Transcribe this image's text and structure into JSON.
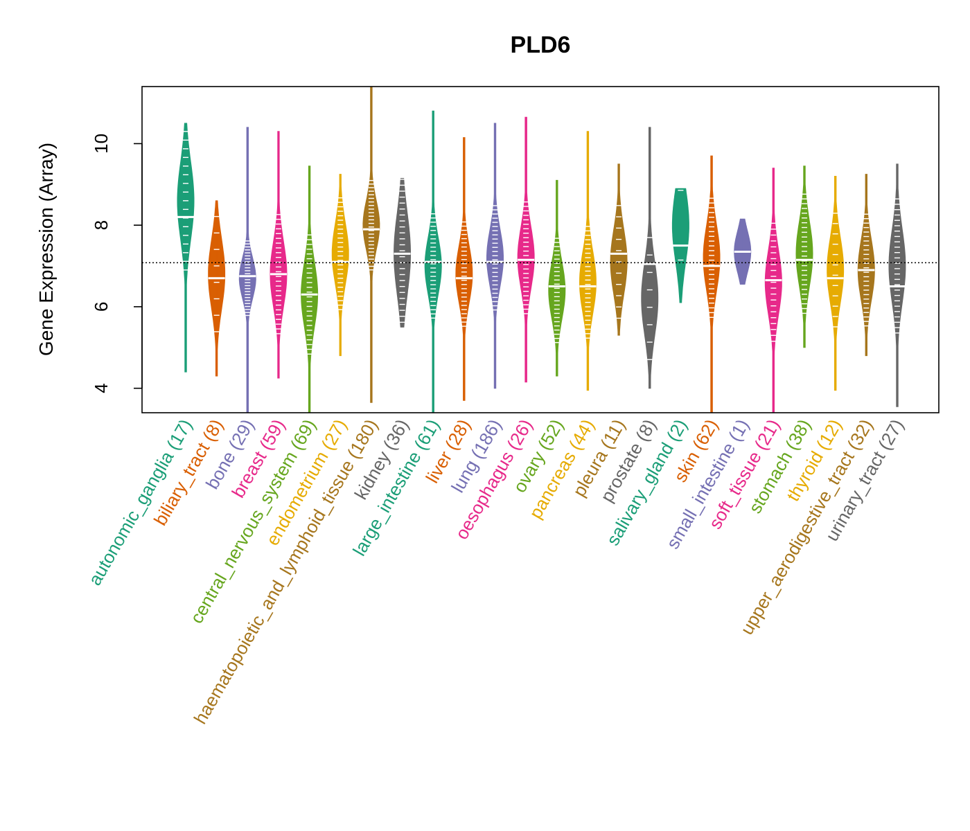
{
  "chart_data": {
    "type": "violin",
    "title": "PLD6",
    "ylabel": "Gene Expression (Array)",
    "xlabel": "",
    "ylim": [
      3.4,
      11.4
    ],
    "yticks": [
      4,
      6,
      8,
      10
    ],
    "reference_line": 7.08,
    "categories": [
      {
        "name": "autonomic_ganglia",
        "count": "(17)",
        "color": "#1B9E77",
        "min": 4.4,
        "max": 10.5,
        "median": 8.2,
        "mode": 8.6,
        "spread": 0.95
      },
      {
        "name": "biliary_tract",
        "count": "(8)",
        "color": "#D95F02",
        "min": 4.3,
        "max": 8.6,
        "median": 6.7,
        "mode": 6.8,
        "spread": 0.85
      },
      {
        "name": "bone",
        "count": "(29)",
        "color": "#7570B3",
        "min": 3.4,
        "max": 10.4,
        "median": 6.75,
        "mode": 6.7,
        "spread": 0.5
      },
      {
        "name": "breast",
        "count": "(59)",
        "color": "#E7298A",
        "min": 4.25,
        "max": 10.3,
        "median": 6.8,
        "mode": 6.8,
        "spread": 0.8
      },
      {
        "name": "central_nervous_system",
        "count": "(69)",
        "color": "#66A61E",
        "min": 3.4,
        "max": 9.45,
        "median": 6.3,
        "mode": 6.3,
        "spread": 0.8
      },
      {
        "name": "endometrium",
        "count": "(27)",
        "color": "#E6AB02",
        "min": 4.8,
        "max": 9.25,
        "median": 7.1,
        "mode": 7.3,
        "spread": 0.75
      },
      {
        "name": "haematopoietic_and_lymphoid_tissue",
        "count": "(180)",
        "color": "#A6761D",
        "min": 3.65,
        "max": 11.4,
        "median": 7.9,
        "mode": 8.0,
        "spread": 0.6
      },
      {
        "name": "kidney",
        "count": "(36)",
        "color": "#666666",
        "min": 5.5,
        "max": 9.15,
        "median": 7.3,
        "mode": 7.3,
        "spread": 1.0
      },
      {
        "name": "large_intestine",
        "count": "(61)",
        "color": "#1B9E77",
        "min": 3.4,
        "max": 10.8,
        "median": 7.1,
        "mode": 7.0,
        "spread": 0.7
      },
      {
        "name": "liver",
        "count": "(28)",
        "color": "#D95F02",
        "min": 3.7,
        "max": 10.15,
        "median": 6.7,
        "mode": 6.8,
        "spread": 0.7
      },
      {
        "name": "lung",
        "count": "(186)",
        "color": "#7570B3",
        "min": 4.0,
        "max": 10.5,
        "median": 7.1,
        "mode": 7.2,
        "spread": 0.7
      },
      {
        "name": "oesophagus",
        "count": "(26)",
        "color": "#E7298A",
        "min": 4.15,
        "max": 10.65,
        "median": 7.15,
        "mode": 7.2,
        "spread": 0.75
      },
      {
        "name": "ovary",
        "count": "(52)",
        "color": "#66A61E",
        "min": 4.3,
        "max": 9.1,
        "median": 6.5,
        "mode": 6.4,
        "spread": 0.7
      },
      {
        "name": "pancreas",
        "count": "(44)",
        "color": "#E6AB02",
        "min": 3.95,
        "max": 10.3,
        "median": 6.5,
        "mode": 6.6,
        "spread": 0.75
      },
      {
        "name": "pleura",
        "count": "(11)",
        "color": "#A6761D",
        "min": 5.3,
        "max": 9.5,
        "median": 7.3,
        "mode": 7.1,
        "spread": 0.8
      },
      {
        "name": "prostate",
        "count": "(8)",
        "color": "#666666",
        "min": 4.0,
        "max": 10.4,
        "median": 7.05,
        "mode": 6.2,
        "spread": 0.9
      },
      {
        "name": "salivary_gland",
        "count": "(2)",
        "color": "#1B9E77",
        "min": 6.1,
        "max": 8.9,
        "median": 7.5,
        "mode": 8.0,
        "spread": 0.9
      },
      {
        "name": "skin",
        "count": "(62)",
        "color": "#D95F02",
        "min": 3.4,
        "max": 9.7,
        "median": 7.0,
        "mode": 7.2,
        "spread": 0.8
      },
      {
        "name": "small_intestine",
        "count": "(1)",
        "color": "#7570B3",
        "min": 6.55,
        "max": 8.15,
        "median": 7.35,
        "mode": 7.35,
        "spread": 0.5
      },
      {
        "name": "soft_tissue",
        "count": "(21)",
        "color": "#E7298A",
        "min": 3.4,
        "max": 9.4,
        "median": 6.65,
        "mode": 6.6,
        "spread": 0.8
      },
      {
        "name": "stomach",
        "count": "(38)",
        "color": "#66A61E",
        "min": 5.0,
        "max": 9.45,
        "median": 7.15,
        "mode": 7.3,
        "spread": 0.8
      },
      {
        "name": "thyroid",
        "count": "(12)",
        "color": "#E6AB02",
        "min": 3.95,
        "max": 9.2,
        "median": 6.7,
        "mode": 6.9,
        "spread": 0.8
      },
      {
        "name": "upper_aerodigestive_tract",
        "count": "(32)",
        "color": "#A6761D",
        "min": 4.8,
        "max": 9.25,
        "median": 6.9,
        "mode": 6.9,
        "spread": 0.75
      },
      {
        "name": "urinary_tract",
        "count": "(27)",
        "color": "#666666",
        "min": 3.55,
        "max": 9.5,
        "median": 6.5,
        "mode": 7.0,
        "spread": 0.9
      }
    ]
  }
}
